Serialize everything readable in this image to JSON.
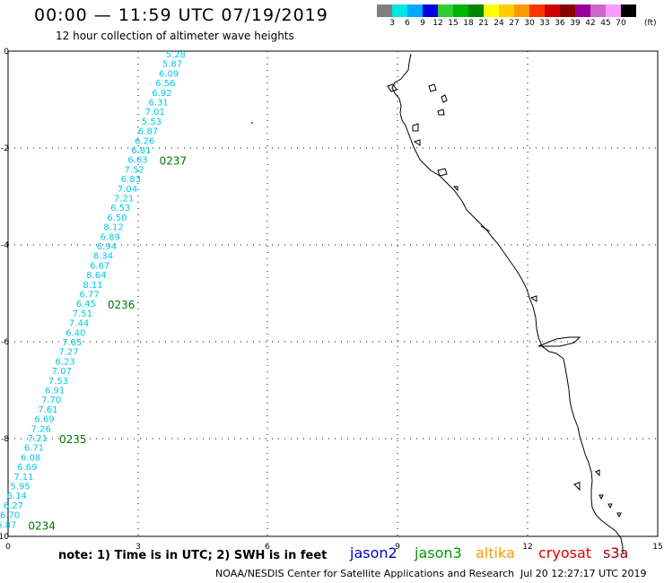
{
  "header": {
    "title": "00:00 — 11:59 UTC 07/19/2019",
    "subtitle": "12 hour collection of altimeter wave heights"
  },
  "colorbar": {
    "colors": [
      "#808080",
      "#00e5e5",
      "#00aaff",
      "#0000e0",
      "#33cc33",
      "#00b300",
      "#008800",
      "#ffff00",
      "#ffcc00",
      "#ff9900",
      "#ff3300",
      "#cc0000",
      "#880000",
      "#990099",
      "#cc66cc",
      "#ff99ff",
      "#000000"
    ],
    "labels": [
      "3",
      "6",
      "9",
      "12",
      "15",
      "18",
      "21",
      "24",
      "27",
      "30",
      "33",
      "36",
      "39",
      "42",
      "45",
      "70"
    ],
    "unit": "(ft)"
  },
  "axes": {
    "x_ticks": [
      "0",
      "3",
      "6",
      "9",
      "12",
      "15"
    ],
    "y_ticks": [
      "0",
      "-2",
      "-4",
      "-6",
      "-8",
      "-10"
    ]
  },
  "track": {
    "color": "#00c8e8",
    "heights": [
      "5.28",
      "5.87",
      "6.09",
      "6.56",
      "6.92",
      "6.31",
      "7.01",
      "5.53",
      "6.87",
      "6.26",
      "6.81",
      "6.63",
      "7.52",
      "6.83",
      "7.04",
      "7.21",
      "6.53",
      "6.50",
      "8.12",
      "6.89",
      "6.94",
      "8.34",
      "6.67",
      "8.64",
      "8.11",
      "6.77",
      "6.45",
      "7.51",
      "7.44",
      "6.40",
      "7.85",
      "7.27",
      "6.23",
      "7.07",
      "7.53",
      "6.91",
      "7.70",
      "7.61",
      "6.69",
      "7.26",
      "7.21",
      "6.71",
      "6.08",
      "6.69",
      "7.11",
      "5.95",
      "6.14",
      "6.27",
      "6.70",
      "6.87"
    ],
    "time_labels": [
      {
        "text": "0237",
        "row": 11
      },
      {
        "text": "0236",
        "row": 26
      },
      {
        "text": "0235",
        "row": 40
      },
      {
        "text": "0234",
        "row": 49
      }
    ],
    "time_color": "#007700"
  },
  "note": "note: 1) Time is in UTC; 2) SWH is in feet",
  "missions": [
    {
      "name": "jason2",
      "color": "#0000cc"
    },
    {
      "name": "jason3",
      "color": "#009900"
    },
    {
      "name": "altika",
      "color": "#ff9900"
    },
    {
      "name": "cryosat",
      "color": "#dd0000"
    },
    {
      "name": "s3a",
      "color": "#990000"
    }
  ],
  "footer": {
    "credit": "NOAA/NESDIS Center for Satellite Applications and Research",
    "timestamp": "Jul 20 12:27:17 UTC 2019"
  }
}
